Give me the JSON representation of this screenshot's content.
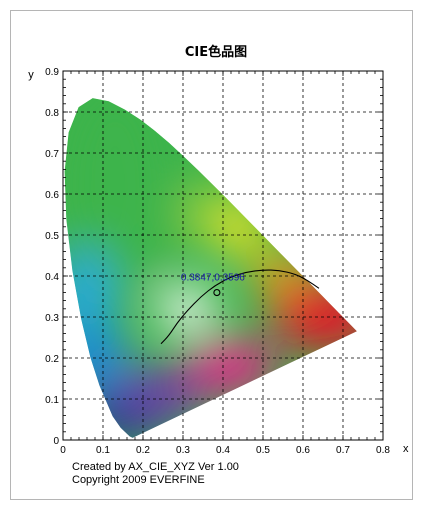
{
  "chart_data": {
    "type": "scatter",
    "title": "CIE色品图",
    "xlabel": "x",
    "ylabel": "y",
    "xlim": [
      0,
      0.8
    ],
    "ylim": [
      0,
      0.9
    ],
    "x_ticks": [
      "0",
      "0.1",
      "0.2",
      "0.3",
      "0.4",
      "0.5",
      "0.6",
      "0.7",
      "0.8"
    ],
    "y_ticks": [
      "0",
      "0.1",
      "0.2",
      "0.3",
      "0.4",
      "0.5",
      "0.6",
      "0.7",
      "0.8",
      "0.9"
    ],
    "grid": true,
    "spectral_locus": [
      [
        0.1741,
        0.005
      ],
      [
        0.1666,
        0.0089
      ],
      [
        0.144,
        0.0297
      ],
      [
        0.1241,
        0.0578
      ],
      [
        0.0913,
        0.1327
      ],
      [
        0.0687,
        0.2007
      ],
      [
        0.0454,
        0.295
      ],
      [
        0.0235,
        0.4127
      ],
      [
        0.0082,
        0.5384
      ],
      [
        0.0039,
        0.6548
      ],
      [
        0.0139,
        0.7502
      ],
      [
        0.0389,
        0.812
      ],
      [
        0.0743,
        0.8338
      ],
      [
        0.1142,
        0.8262
      ],
      [
        0.1547,
        0.8059
      ],
      [
        0.1929,
        0.7816
      ],
      [
        0.2296,
        0.7543
      ],
      [
        0.2658,
        0.7243
      ],
      [
        0.3016,
        0.6923
      ],
      [
        0.3373,
        0.6589
      ],
      [
        0.3731,
        0.6245
      ],
      [
        0.4087,
        0.5896
      ],
      [
        0.4441,
        0.5547
      ],
      [
        0.4788,
        0.5202
      ],
      [
        0.5125,
        0.4866
      ],
      [
        0.5448,
        0.4544
      ],
      [
        0.5752,
        0.4242
      ],
      [
        0.6029,
        0.3965
      ],
      [
        0.627,
        0.3725
      ],
      [
        0.6482,
        0.3514
      ],
      [
        0.6658,
        0.334
      ],
      [
        0.6915,
        0.3083
      ],
      [
        0.714,
        0.2859
      ],
      [
        0.7347,
        0.2653
      ]
    ],
    "planckian_locus": [
      [
        0.245,
        0.235
      ],
      [
        0.265,
        0.255
      ],
      [
        0.285,
        0.285
      ],
      [
        0.31,
        0.315
      ],
      [
        0.345,
        0.35
      ],
      [
        0.38,
        0.377
      ],
      [
        0.42,
        0.398
      ],
      [
        0.46,
        0.41
      ],
      [
        0.5,
        0.415
      ],
      [
        0.54,
        0.414
      ],
      [
        0.58,
        0.405
      ],
      [
        0.61,
        0.39
      ],
      [
        0.64,
        0.37
      ]
    ],
    "measured_point": {
      "x": 0.3847,
      "y": 0.3596
    },
    "annotation": "0.3847,0.3596"
  },
  "credits": {
    "line1": "Created by AX_CIE_XYZ Ver 1.00",
    "line2": "Copyright 2009 EVERFINE"
  },
  "colors": {
    "green": "#3cb44b",
    "cyan": "#27a9e0",
    "blue": "#0b3d91",
    "red": "#e3192b",
    "yellow": "#f6e71d",
    "magenta": "#e6228b",
    "annotation": "#1a1aa6"
  }
}
